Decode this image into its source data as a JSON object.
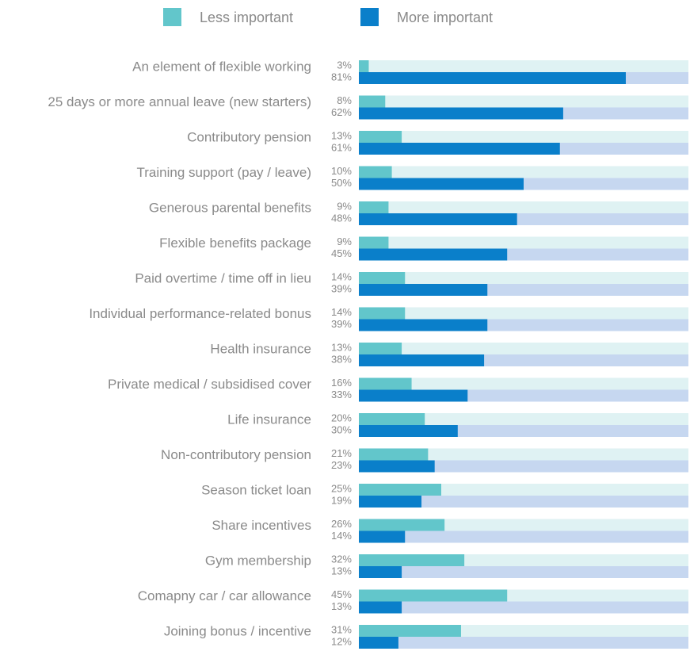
{
  "chart_data": {
    "type": "bar",
    "orientation": "horizontal",
    "categories": [
      "An element of flexible working",
      "25 days or more annual leave (new starters)",
      "Contributory pension",
      "Training support (pay  / leave)",
      "Generous parental benefits",
      "Flexible benefits package",
      "Paid overtime / time off in lieu",
      "Individual performance-related bonus",
      "Health insurance",
      "Private medical / subsidised cover",
      "Life insurance",
      "Non-contributory pension",
      "Season ticket loan",
      "Share incentives",
      "Gym membership",
      "Comapny car / car allowance",
      "Joining bonus / incentive"
    ],
    "series": [
      {
        "name": "Less important",
        "color": "#62c6cb",
        "track": "#dff2f3",
        "values": [
          3,
          8,
          13,
          10,
          9,
          9,
          14,
          14,
          13,
          16,
          20,
          21,
          25,
          26,
          32,
          45,
          31
        ],
        "value_labels": [
          "3%",
          "8%",
          "13%",
          "10%",
          "9%",
          "9%",
          "14%",
          "14%",
          "13%",
          "16%",
          "20%",
          "21%",
          "25%",
          "26%",
          "32%",
          "45%",
          "31%"
        ]
      },
      {
        "name": "More important",
        "color": "#0a7fca",
        "track": "#c6d7f0",
        "values": [
          81,
          62,
          61,
          50,
          48,
          45,
          39,
          39,
          38,
          33,
          30,
          23,
          19,
          14,
          13,
          13,
          12
        ],
        "value_labels": [
          "81%",
          "62%",
          "61%",
          "50%",
          "48%",
          "45%",
          "39%",
          "39%",
          "38%",
          "33%",
          "30%",
          "23%",
          "19%",
          "14%",
          "13%",
          "13%",
          "12%"
        ]
      }
    ],
    "xlim": [
      0,
      100
    ]
  }
}
